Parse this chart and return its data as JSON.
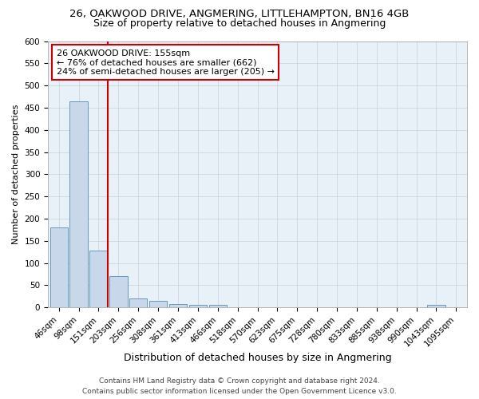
{
  "title": "26, OAKWOOD DRIVE, ANGMERING, LITTLEHAMPTON, BN16 4GB",
  "subtitle": "Size of property relative to detached houses in Angmering",
  "xlabel": "Distribution of detached houses by size in Angmering",
  "ylabel": "Number of detached properties",
  "categories": [
    "46sqm",
    "98sqm",
    "151sqm",
    "203sqm",
    "256sqm",
    "308sqm",
    "361sqm",
    "413sqm",
    "466sqm",
    "518sqm",
    "570sqm",
    "623sqm",
    "675sqm",
    "728sqm",
    "780sqm",
    "833sqm",
    "885sqm",
    "938sqm",
    "990sqm",
    "1043sqm",
    "1095sqm"
  ],
  "values": [
    180,
    465,
    128,
    70,
    20,
    14,
    7,
    6,
    6,
    0,
    0,
    0,
    0,
    0,
    0,
    0,
    0,
    0,
    0,
    6,
    0
  ],
  "bar_color": "#c8d8ea",
  "bar_edge_color": "#6699bb",
  "vline_color": "#cc0000",
  "vline_x_index": 2,
  "annotation_line1": "26 OAKWOOD DRIVE: 155sqm",
  "annotation_line2": "← 76% of detached houses are smaller (662)",
  "annotation_line3": "24% of semi-detached houses are larger (205) →",
  "annotation_box_color": "#ffffff",
  "annotation_box_edge_color": "#cc0000",
  "ylim": [
    0,
    600
  ],
  "yticks": [
    0,
    50,
    100,
    150,
    200,
    250,
    300,
    350,
    400,
    450,
    500,
    550,
    600
  ],
  "fig_background": "#ffffff",
  "plot_background": "#e8f0f8",
  "grid_color": "#c8d0dc",
  "footer_line1": "Contains HM Land Registry data © Crown copyright and database right 2024.",
  "footer_line2": "Contains public sector information licensed under the Open Government Licence v3.0.",
  "title_fontsize": 9.5,
  "subtitle_fontsize": 9,
  "xlabel_fontsize": 9,
  "ylabel_fontsize": 8,
  "tick_fontsize": 7.5,
  "annotation_fontsize": 8,
  "footer_fontsize": 6.5
}
